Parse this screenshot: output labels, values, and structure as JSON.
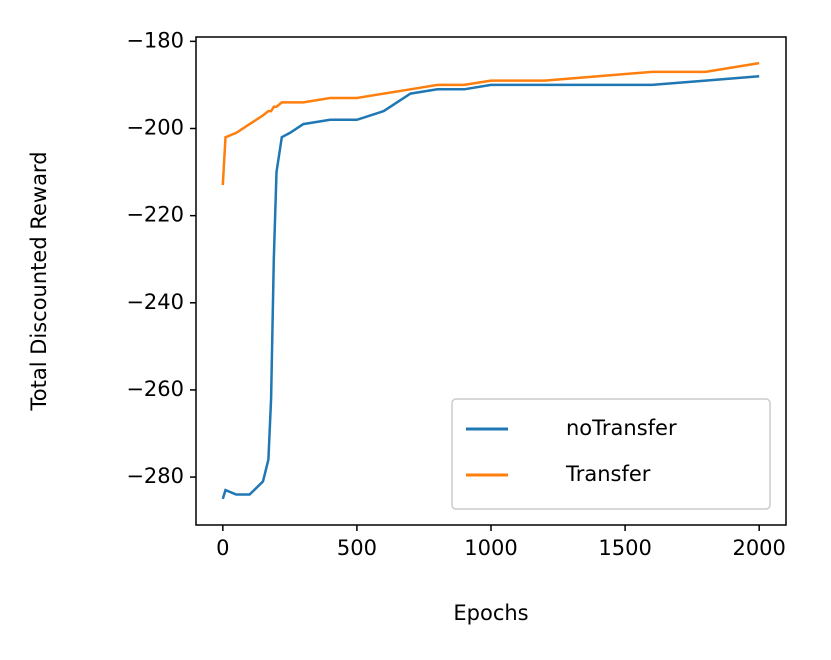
{
  "chart_data": {
    "type": "line",
    "xlabel": "Epochs",
    "ylabel": "Total Discounted Reward",
    "x": [
      0,
      10,
      50,
      100,
      150,
      170,
      180,
      190,
      200,
      220,
      250,
      300,
      400,
      500,
      600,
      700,
      800,
      900,
      1000,
      1200,
      1400,
      1600,
      1800,
      2000
    ],
    "series": [
      {
        "name": "noTransfer",
        "color": "#1f77b4",
        "values": [
          -285,
          -283,
          -284,
          -284,
          -281,
          -276,
          -262,
          -230,
          -210,
          -202,
          -201,
          -199,
          -198,
          -198,
          -196,
          -192,
          -191,
          -191,
          -190,
          -190,
          -190,
          -190,
          -189,
          -188
        ]
      },
      {
        "name": "Transfer",
        "color": "#ff7f0e",
        "values": [
          -213,
          -202,
          -201,
          -199,
          -197,
          -196,
          -196,
          -195,
          -195,
          -194,
          -194,
          -194,
          -193,
          -193,
          -192,
          -191,
          -190,
          -190,
          -189,
          -189,
          -188,
          -187,
          -187,
          -185
        ]
      }
    ],
    "xlim": [
      -100,
      2100
    ],
    "ylim": [
      -291,
      -179
    ],
    "xticks": [
      0,
      500,
      1000,
      1500,
      2000
    ],
    "yticks": [
      {
        "value": -180,
        "label": "−180"
      },
      {
        "value": -200,
        "label": "−200"
      },
      {
        "value": -220,
        "label": "−220"
      },
      {
        "value": -240,
        "label": "−240"
      },
      {
        "value": -260,
        "label": "−260"
      },
      {
        "value": -280,
        "label": "−280"
      }
    ],
    "legend": "lower right",
    "grid": false
  }
}
